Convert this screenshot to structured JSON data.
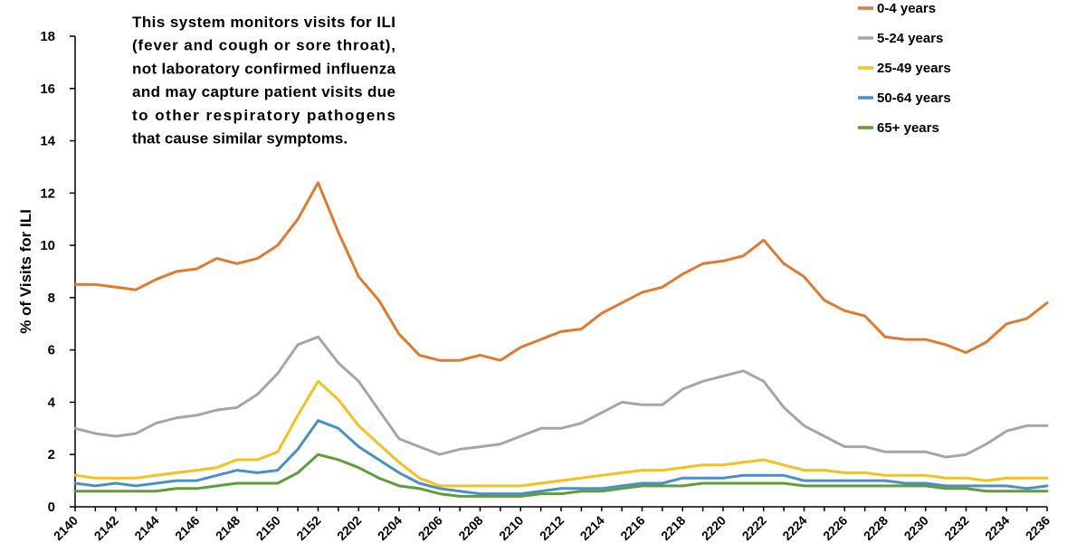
{
  "chart_data": {
    "type": "line",
    "title": "",
    "xlabel": "",
    "ylabel": "% of Visits for ILI",
    "ylim": [
      0,
      18
    ],
    "yticks": [
      0,
      2,
      4,
      6,
      8,
      10,
      12,
      14,
      16,
      18
    ],
    "grid": false,
    "legend_position": "top-right",
    "x": [
      "2140",
      "2141",
      "2142",
      "2143",
      "2144",
      "2145",
      "2146",
      "2147",
      "2148",
      "2149",
      "2150",
      "2151",
      "2152",
      "2201",
      "2202",
      "2203",
      "2204",
      "2205",
      "2206",
      "2207",
      "2208",
      "2209",
      "2210",
      "2211",
      "2212",
      "2213",
      "2214",
      "2215",
      "2216",
      "2217",
      "2218",
      "2219",
      "2220",
      "2221",
      "2222",
      "2223",
      "2224",
      "2225",
      "2226",
      "2227",
      "2228",
      "2229",
      "2230",
      "2231",
      "2232",
      "2233",
      "2234",
      "2235",
      "2236"
    ],
    "x_tick_labels": [
      "2140",
      "2142",
      "2144",
      "2146",
      "2148",
      "2150",
      "2152",
      "2202",
      "2204",
      "2206",
      "2208",
      "2210",
      "2212",
      "2214",
      "2216",
      "2218",
      "2220",
      "2222",
      "2224",
      "2226",
      "2228",
      "2230",
      "2232",
      "2234",
      "2236"
    ],
    "series": [
      {
        "name": "0-4 years",
        "color": "#e07a2e",
        "values": [
          8.5,
          8.5,
          8.4,
          8.3,
          8.7,
          9.0,
          9.1,
          9.5,
          9.3,
          9.5,
          10.0,
          11.0,
          12.4,
          10.5,
          8.8,
          7.9,
          6.6,
          5.8,
          5.6,
          5.6,
          5.8,
          5.6,
          6.1,
          6.4,
          6.7,
          6.8,
          7.4,
          7.8,
          8.2,
          8.4,
          8.9,
          9.3,
          9.4,
          9.6,
          10.2,
          9.3,
          8.8,
          7.9,
          7.5,
          7.3,
          6.5,
          6.4,
          6.4,
          6.2,
          5.9,
          6.3,
          7.0,
          7.2,
          7.8
        ]
      },
      {
        "name": "5-24 years",
        "color": "#a6a6a6",
        "values": [
          3.0,
          2.8,
          2.7,
          2.8,
          3.2,
          3.4,
          3.5,
          3.7,
          3.8,
          4.3,
          5.1,
          6.2,
          6.5,
          5.5,
          4.8,
          3.7,
          2.6,
          2.3,
          2.0,
          2.2,
          2.3,
          2.4,
          2.7,
          3.0,
          3.0,
          3.2,
          3.6,
          4.0,
          3.9,
          3.9,
          4.5,
          4.8,
          5.0,
          5.2,
          4.8,
          3.8,
          3.1,
          2.7,
          2.3,
          2.3,
          2.1,
          2.1,
          2.1,
          1.9,
          2.0,
          2.4,
          2.9,
          3.1,
          3.1
        ]
      },
      {
        "name": "25-49 years",
        "color": "#f5c11b",
        "values": [
          1.2,
          1.1,
          1.1,
          1.1,
          1.2,
          1.3,
          1.4,
          1.5,
          1.8,
          1.8,
          2.1,
          3.5,
          4.8,
          4.1,
          3.1,
          2.4,
          1.7,
          1.1,
          0.8,
          0.8,
          0.8,
          0.8,
          0.8,
          0.9,
          1.0,
          1.1,
          1.2,
          1.3,
          1.4,
          1.4,
          1.5,
          1.6,
          1.6,
          1.7,
          1.8,
          1.6,
          1.4,
          1.4,
          1.3,
          1.3,
          1.2,
          1.2,
          1.2,
          1.1,
          1.1,
          1.0,
          1.1,
          1.1,
          1.1
        ]
      },
      {
        "name": "50-64 years",
        "color": "#4a90c8",
        "values": [
          0.9,
          0.8,
          0.9,
          0.8,
          0.9,
          1.0,
          1.0,
          1.2,
          1.4,
          1.3,
          1.4,
          2.2,
          3.3,
          3.0,
          2.3,
          1.8,
          1.3,
          0.9,
          0.7,
          0.6,
          0.5,
          0.5,
          0.5,
          0.6,
          0.7,
          0.7,
          0.7,
          0.8,
          0.9,
          0.9,
          1.1,
          1.1,
          1.1,
          1.2,
          1.2,
          1.2,
          1.0,
          1.0,
          1.0,
          1.0,
          1.0,
          0.9,
          0.9,
          0.8,
          0.8,
          0.8,
          0.8,
          0.7,
          0.8
        ]
      },
      {
        "name": "65+ years",
        "color": "#5d9e36",
        "values": [
          0.6,
          0.6,
          0.6,
          0.6,
          0.6,
          0.7,
          0.7,
          0.8,
          0.9,
          0.9,
          0.9,
          1.3,
          2.0,
          1.8,
          1.5,
          1.1,
          0.8,
          0.7,
          0.5,
          0.4,
          0.4,
          0.4,
          0.4,
          0.5,
          0.5,
          0.6,
          0.6,
          0.7,
          0.8,
          0.8,
          0.8,
          0.9,
          0.9,
          0.9,
          0.9,
          0.9,
          0.8,
          0.8,
          0.8,
          0.8,
          0.8,
          0.8,
          0.8,
          0.7,
          0.7,
          0.6,
          0.6,
          0.6,
          0.6
        ]
      }
    ],
    "annotation": [
      "This system monitors visits for ILI",
      "(fever and cough or sore throat),",
      "not laboratory confirmed influenza",
      "and may capture patient visits due",
      "to other respiratory pathogens",
      "that cause similar symptoms."
    ]
  }
}
